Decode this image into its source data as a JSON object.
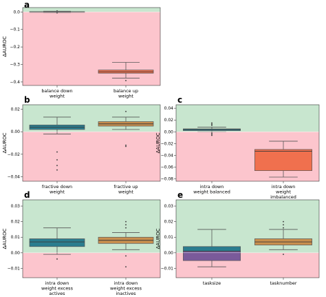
{
  "colors": {
    "positive_bg": "#c8e6cf",
    "negative_bg": "#fcc5cd",
    "axis": "#333333",
    "whisker": "#555555"
  },
  "chart_data": [
    {
      "panel": "a",
      "type": "box",
      "ylabel": "ΔAUROC",
      "ylim": [
        -0.42,
        0.025
      ],
      "yticks": [
        0.0,
        -0.1,
        -0.2,
        -0.3,
        -0.4
      ],
      "ytick_labels": [
        "0.0",
        "−0.1",
        "−0.2",
        "−0.3",
        "−0.4"
      ],
      "categories": [
        {
          "label": [
            "balance down",
            "weight"
          ],
          "color": "#2a7d8f",
          "whislo": -0.003,
          "q1": -0.001,
          "med": 0.0,
          "q3": 0.002,
          "whishi": 0.004,
          "fliers": [
            -0.005,
            0.006
          ]
        },
        {
          "label": [
            "balance up",
            "weight"
          ],
          "color": "#f0704e",
          "whislo": -0.378,
          "q1": -0.35,
          "med": -0.342,
          "q3": -0.332,
          "whishi": -0.288,
          "fliers": [
            -0.392
          ]
        }
      ]
    },
    {
      "panel": "b",
      "type": "box",
      "ylabel": "ΔAUROC",
      "ylim": [
        -0.044,
        0.024
      ],
      "yticks": [
        0.02,
        0.0,
        -0.02,
        -0.04
      ],
      "ytick_labels": [
        "0.02",
        "0.00",
        "−0.02",
        "−0.04"
      ],
      "categories": [
        {
          "label": [
            "fractive down",
            "weight"
          ],
          "color": "#2a7d8f",
          "whislo": -0.002,
          "q1": 0.002,
          "med": 0.004,
          "q3": 0.006,
          "whishi": 0.013,
          "fliers": [
            -0.018,
            -0.025,
            -0.03,
            -0.034
          ]
        },
        {
          "label": [
            "fractive up",
            "weight"
          ],
          "color": "#c98f4e",
          "whislo": 0.002,
          "q1": 0.005,
          "med": 0.007,
          "q3": 0.009,
          "whishi": 0.013,
          "fliers": [
            0.018,
            -0.012,
            -0.013
          ]
        }
      ]
    },
    {
      "panel": "c",
      "type": "box",
      "ylabel": "ΔAUROC",
      "ylim": [
        -0.084,
        0.046
      ],
      "yticks": [
        0.04,
        0.02,
        0.0,
        -0.02,
        -0.04,
        -0.06,
        -0.08
      ],
      "ytick_labels": [
        "0.04",
        "0.02",
        "0.00",
        "−0.02",
        "−0.04",
        "−0.06",
        "−0.08"
      ],
      "categories": [
        {
          "label": [
            "intra down",
            "weight balanced"
          ],
          "color": "#2a7d8f",
          "whislo": 0.0,
          "q1": 0.002,
          "med": 0.004,
          "q3": 0.005,
          "whishi": 0.008,
          "fliers": [
            0.011,
            0.013,
            0.015,
            -0.002,
            -0.004,
            -0.006
          ]
        },
        {
          "label": [
            "intra down",
            "weight",
            "imbalanced"
          ],
          "color": "#f0704e",
          "whislo": -0.077,
          "q1": -0.066,
          "med": -0.033,
          "q3": -0.03,
          "whishi": -0.016,
          "fliers": []
        }
      ]
    },
    {
      "panel": "d",
      "type": "box",
      "ylabel": "ΔAUROC",
      "ylim": [
        -0.016,
        0.034
      ],
      "yticks": [
        0.03,
        0.02,
        0.01,
        0.0,
        -0.01
      ],
      "ytick_labels": [
        "0.03",
        "0.02",
        "0.01",
        "0.00",
        "−0.01"
      ],
      "categories": [
        {
          "label": [
            "intra down",
            "weight excess",
            "actives"
          ],
          "color": "#2a7d8f",
          "whislo": -0.001,
          "q1": 0.004,
          "med": 0.007,
          "q3": 0.009,
          "whishi": 0.016,
          "fliers": [
            -0.004
          ]
        },
        {
          "label": [
            "intra down",
            "weight excess",
            "inactives"
          ],
          "color": "#c98f4e",
          "whislo": 0.002,
          "q1": 0.006,
          "med": 0.008,
          "q3": 0.01,
          "whishi": 0.013,
          "fliers": [
            0.016,
            0.018,
            0.02,
            -0.002,
            -0.009
          ]
        }
      ]
    },
    {
      "panel": "e",
      "type": "box",
      "ylabel": "ΔAUROC",
      "ylim": [
        -0.016,
        0.034
      ],
      "yticks": [
        0.03,
        0.02,
        0.01,
        0.0,
        -0.01
      ],
      "ytick_labels": [
        "0.03",
        "0.02",
        "0.01",
        "0.00",
        "−0.01"
      ],
      "categories": [
        {
          "label": [
            "tasksize"
          ],
          "color": "#7a5a9a",
          "color2": "#2a7d8f",
          "whislo": -0.009,
          "q1": -0.005,
          "med": 0.001,
          "q3": 0.004,
          "whishi": 0.015,
          "fliers": []
        },
        {
          "label": [
            "tasknumber"
          ],
          "color": "#c98f4e",
          "whislo": 0.002,
          "q1": 0.005,
          "med": 0.007,
          "q3": 0.009,
          "whishi": 0.015,
          "fliers": [
            0.018,
            0.02,
            0.016,
            -0.001
          ]
        }
      ]
    }
  ]
}
